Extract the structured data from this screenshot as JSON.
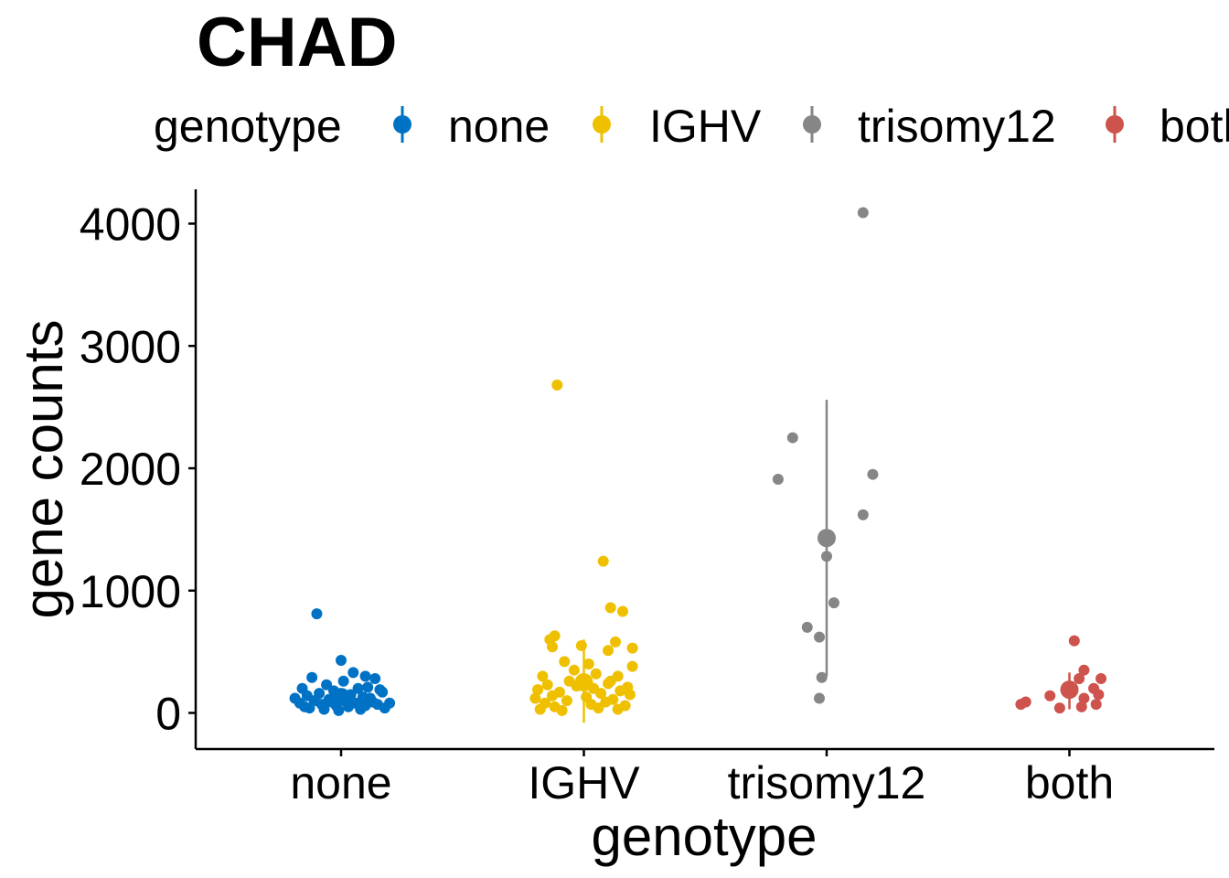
{
  "chart_data": {
    "type": "scatter",
    "title": "CHAD",
    "xlabel": "genotype",
    "ylabel": "gene counts",
    "categories": [
      "none",
      "IGHV",
      "trisomy12",
      "both"
    ],
    "ylim": [
      -300,
      4300
    ],
    "yticks": [
      0,
      1000,
      2000,
      3000,
      4000
    ],
    "grid": false,
    "legend": {
      "title": "genotype",
      "position": "top",
      "entries": [
        "none",
        "IGHV",
        "trisomy12",
        "both"
      ]
    },
    "colors": {
      "none": "#0072C6",
      "IGHV": "#EFC000",
      "trisomy12": "#868686",
      "both": "#CD534C"
    },
    "series": [
      {
        "category": "none",
        "summary": {
          "mean": 130,
          "low": 60,
          "high": 200
        },
        "points": [
          [
            -0.1,
            810
          ],
          [
            0.0,
            430
          ],
          [
            0.05,
            330
          ],
          [
            0.1,
            300
          ],
          [
            -0.12,
            290
          ],
          [
            0.14,
            280
          ],
          [
            0.01,
            260
          ],
          [
            -0.06,
            230
          ],
          [
            0.11,
            210
          ],
          [
            -0.16,
            200
          ],
          [
            0.07,
            200
          ],
          [
            0.16,
            190
          ],
          [
            -0.03,
            180
          ],
          [
            0.17,
            170
          ],
          [
            -0.09,
            160
          ],
          [
            0.04,
            150
          ],
          [
            -0.14,
            140
          ],
          [
            0.09,
            130
          ],
          [
            -0.19,
            120
          ],
          [
            0.12,
            120
          ],
          [
            -0.05,
            110
          ],
          [
            0.02,
            100
          ],
          [
            -0.11,
            100
          ],
          [
            0.13,
            90
          ],
          [
            -0.17,
            80
          ],
          [
            0.2,
            80
          ],
          [
            0.06,
            80
          ],
          [
            -0.08,
            70
          ],
          [
            0.15,
            70
          ],
          [
            -0.02,
            60
          ],
          [
            0.1,
            60
          ],
          [
            -0.15,
            50
          ],
          [
            0.03,
            50
          ],
          [
            -0.13,
            40
          ],
          [
            0.18,
            40
          ],
          [
            -0.07,
            30
          ],
          [
            0.08,
            30
          ],
          [
            -0.01,
            20
          ],
          [
            0.12,
            120
          ],
          [
            -0.04,
            90
          ]
        ]
      },
      {
        "category": "IGHV",
        "summary": {
          "mean": 250,
          "low": -80,
          "high": 600
        },
        "points": [
          [
            -0.11,
            2680
          ],
          [
            0.08,
            1240
          ],
          [
            0.11,
            860
          ],
          [
            0.16,
            830
          ],
          [
            -0.12,
            630
          ],
          [
            -0.14,
            600
          ],
          [
            0.13,
            580
          ],
          [
            -0.13,
            540
          ],
          [
            -0.01,
            550
          ],
          [
            0.2,
            530
          ],
          [
            0.1,
            510
          ],
          [
            -0.08,
            420
          ],
          [
            0.02,
            400
          ],
          [
            0.2,
            380
          ],
          [
            -0.04,
            350
          ],
          [
            0.05,
            320
          ],
          [
            -0.17,
            300
          ],
          [
            0.14,
            300
          ],
          [
            0.0,
            280
          ],
          [
            -0.06,
            260
          ],
          [
            0.1,
            240
          ],
          [
            -0.15,
            230
          ],
          [
            -0.03,
            220
          ],
          [
            0.18,
            210
          ],
          [
            0.04,
            200
          ],
          [
            -0.19,
            190
          ],
          [
            0.15,
            180
          ],
          [
            -0.1,
            170
          ],
          [
            0.07,
            160
          ],
          [
            0.19,
            150
          ],
          [
            -0.13,
            140
          ],
          [
            0.01,
            130
          ],
          [
            -0.2,
            120
          ],
          [
            0.12,
            110
          ],
          [
            -0.07,
            100
          ],
          [
            0.09,
            90
          ],
          [
            -0.16,
            80
          ],
          [
            0.03,
            70
          ],
          [
            0.17,
            60
          ],
          [
            -0.12,
            50
          ],
          [
            0.06,
            40
          ],
          [
            -0.18,
            30
          ],
          [
            0.14,
            30
          ],
          [
            -0.09,
            20
          ],
          [
            0.11,
            260
          ]
        ]
      },
      {
        "category": "trisomy12",
        "summary": {
          "mean": 1430,
          "low": 300,
          "high": 2560
        },
        "points": [
          [
            0.15,
            4090
          ],
          [
            -0.14,
            2250
          ],
          [
            0.19,
            1950
          ],
          [
            -0.2,
            1910
          ],
          [
            0.15,
            1620
          ],
          [
            0.0,
            1280
          ],
          [
            0.03,
            900
          ],
          [
            -0.08,
            700
          ],
          [
            -0.03,
            620
          ],
          [
            -0.02,
            290
          ],
          [
            -0.03,
            120
          ]
        ]
      },
      {
        "category": "both",
        "summary": {
          "mean": 190,
          "low": 30,
          "high": 330
        },
        "points": [
          [
            0.02,
            590
          ],
          [
            0.06,
            350
          ],
          [
            0.13,
            280
          ],
          [
            0.04,
            280
          ],
          [
            0.1,
            200
          ],
          [
            -0.08,
            140
          ],
          [
            0.12,
            150
          ],
          [
            0.06,
            120
          ],
          [
            -0.18,
            90
          ],
          [
            -0.2,
            70
          ],
          [
            0.11,
            70
          ],
          [
            0.05,
            50
          ],
          [
            -0.04,
            40
          ]
        ]
      }
    ]
  }
}
